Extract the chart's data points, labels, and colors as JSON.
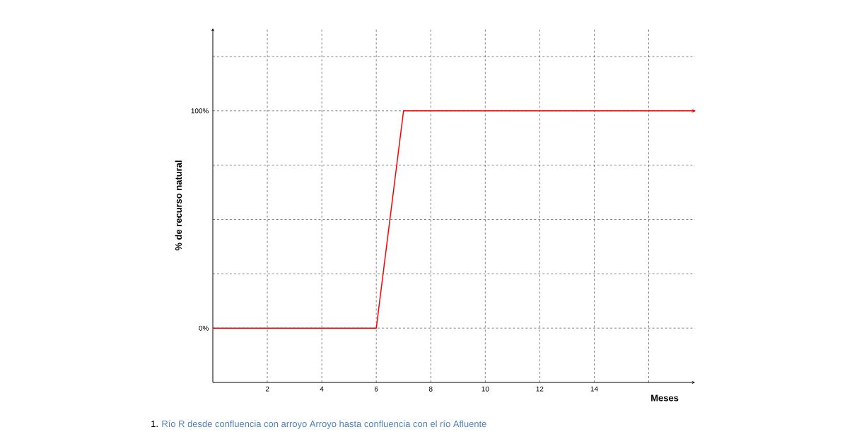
{
  "chart_data": {
    "type": "line",
    "xlabel": "Meses",
    "ylabel": "% de recurso natural",
    "x": [
      0,
      6,
      7,
      17.7
    ],
    "series": [
      {
        "color": "#ff0000",
        "values": [
          0,
          0,
          100,
          100
        ]
      }
    ],
    "xlim": [
      0,
      17.7
    ],
    "ylim": [
      -25,
      138
    ],
    "xticks": [
      2,
      4,
      6,
      8,
      10,
      12,
      14,
      {
        "value": 16,
        "label": null
      }
    ],
    "yticks": [
      {
        "value": 0,
        "label": "0%"
      },
      {
        "value": 25,
        "label": null
      },
      {
        "value": 50,
        "label": null
      },
      {
        "value": 75,
        "label": null
      },
      {
        "value": 100,
        "label": "100%"
      },
      {
        "value": 125,
        "label": null
      }
    ],
    "grid": true,
    "annotations": [
      "1.",
      "Río R desde confluencia con arroyo Arroyo hasta confluencia con el río Afluente"
    ]
  }
}
